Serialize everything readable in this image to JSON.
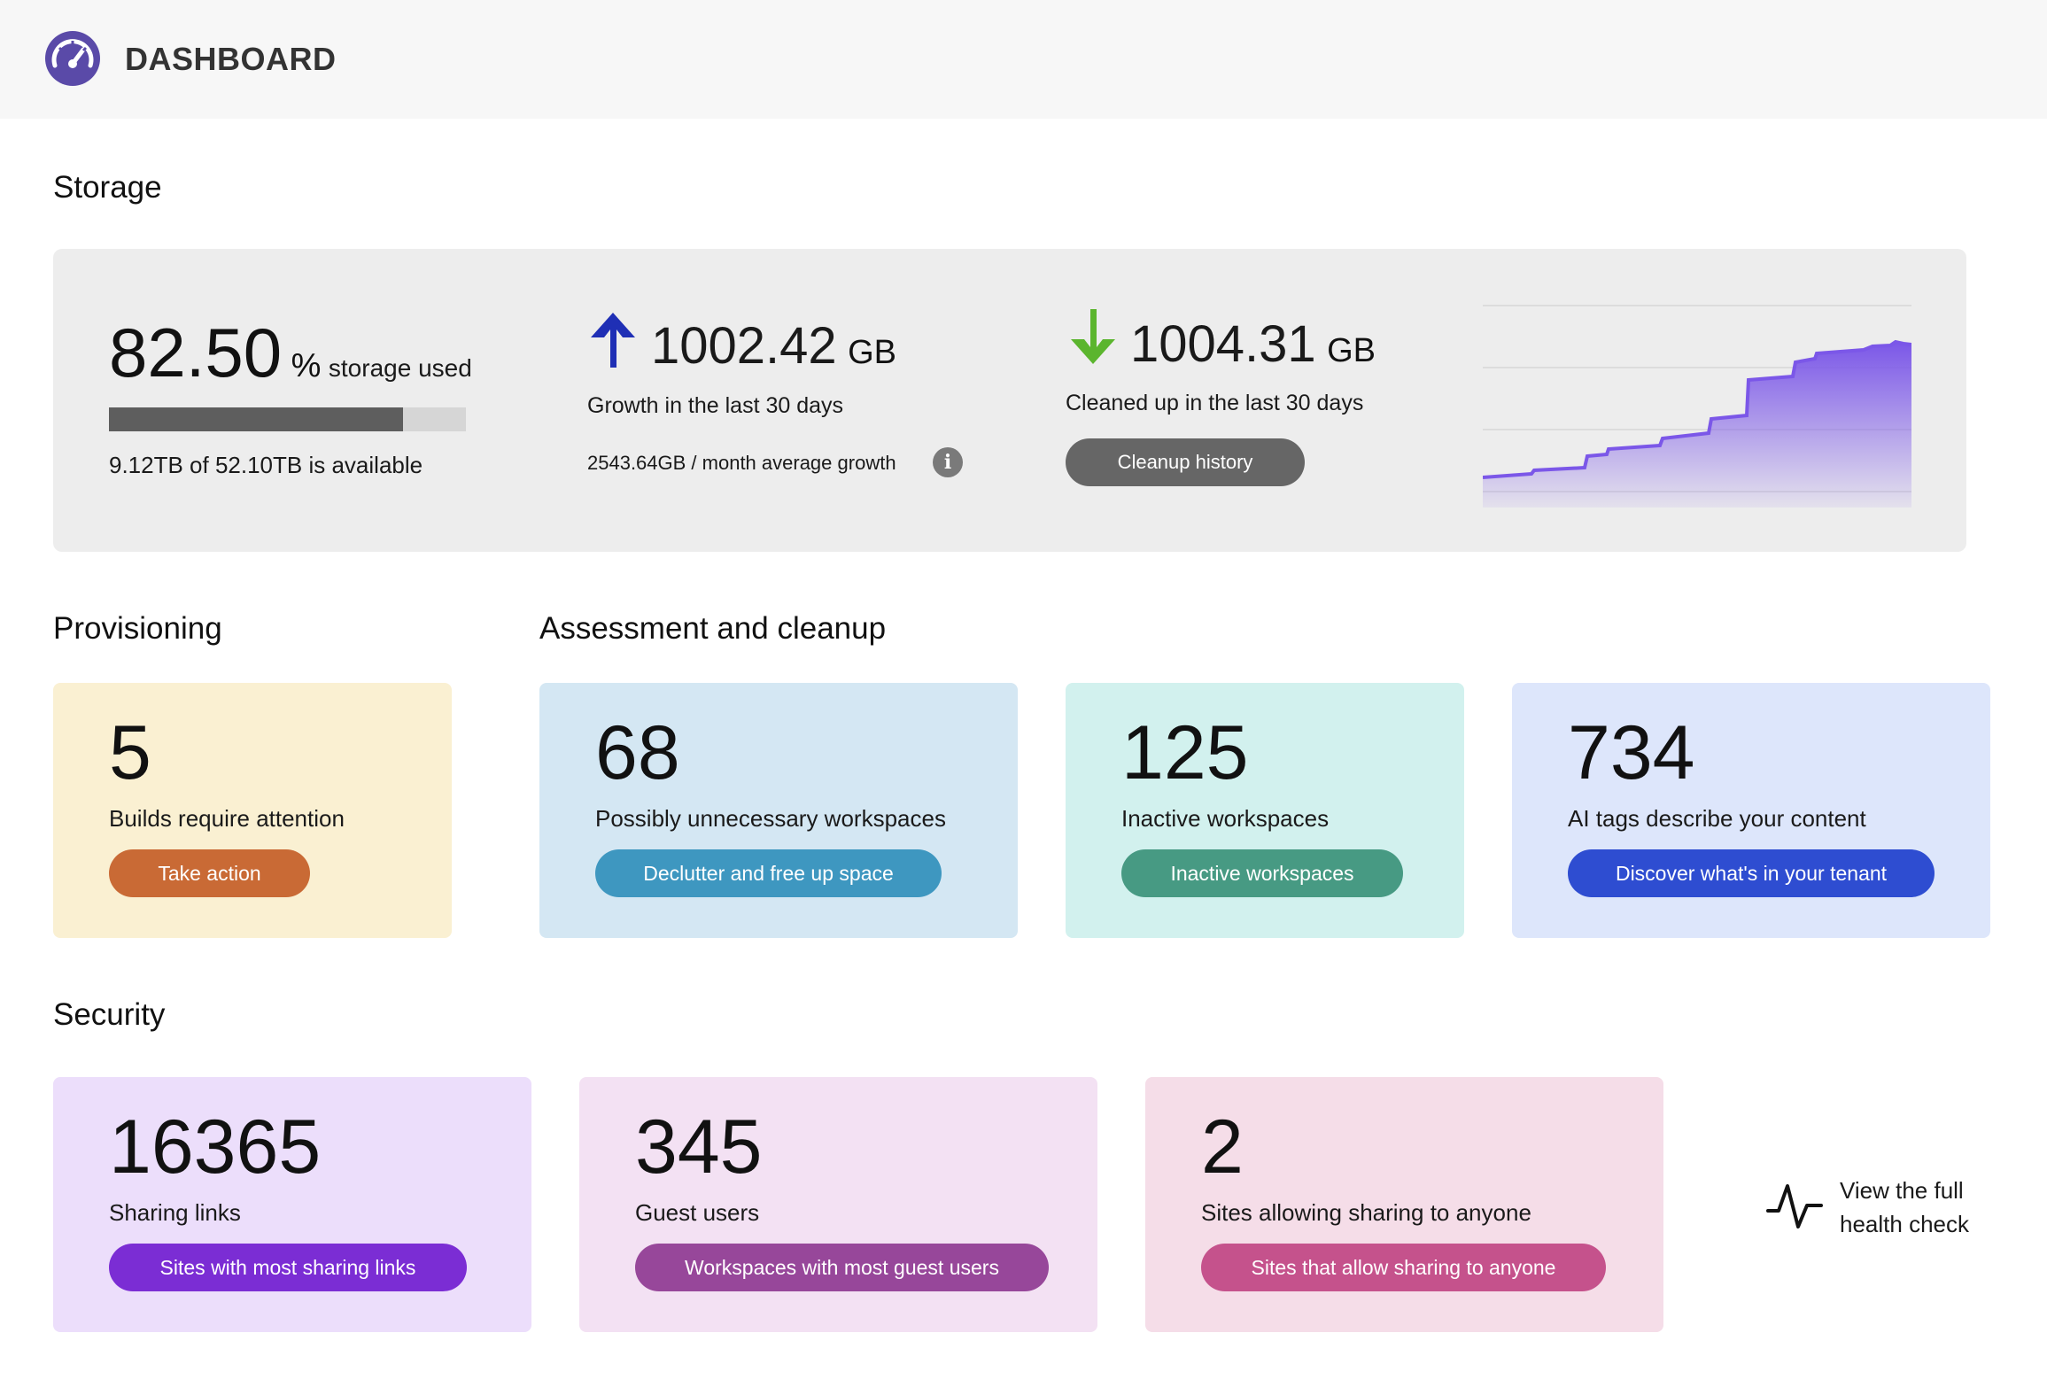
{
  "header": {
    "title": "DASHBOARD",
    "logo_icon": "speedometer-icon"
  },
  "sections": {
    "storage": "Storage",
    "provisioning": "Provisioning",
    "assessment": "Assessment and cleanup",
    "security": "Security"
  },
  "storage": {
    "used_value": "82.50",
    "used_unit": "%",
    "used_label": "storage used",
    "used_fraction": 0.825,
    "available_text": "9.12TB of 52.10TB is available",
    "growth_value": "1002.42",
    "growth_unit": "GB",
    "growth_label": "Growth in the last 30 days",
    "growth_avg": "2543.64GB / month average growth",
    "cleaned_value": "1004.31",
    "cleaned_unit": "GB",
    "cleaned_label": "Cleaned up in the last 30 days",
    "cleanup_button": "Cleanup history",
    "colors": {
      "growth_arrow": "#1f2fb5",
      "cleaned_arrow": "#5bb52e",
      "chart": "#7b57e8"
    }
  },
  "provisioning": {
    "value": "5",
    "label": "Builds require attention",
    "button": "Take action",
    "colors": {
      "bg": "#faf0d2",
      "button": "#c96a35"
    }
  },
  "assessment": [
    {
      "value": "68",
      "label": "Possibly unnecessary workspaces",
      "button": "Declutter and free up space",
      "colors": {
        "bg": "#d4e7f3",
        "button": "#3e97c0"
      }
    },
    {
      "value": "125",
      "label": "Inactive workspaces",
      "button": "Inactive workspaces",
      "colors": {
        "bg": "#d2f1ee",
        "button": "#479a83"
      }
    },
    {
      "value": "734",
      "label": "AI tags describe your content",
      "button": "Discover what's in your tenant",
      "colors": {
        "bg": "#dde6fb",
        "button": "#2e4dd1"
      }
    }
  ],
  "security": [
    {
      "value": "16365",
      "label": "Sharing links",
      "button": "Sites with most sharing links",
      "colors": {
        "bg": "#ecdefb",
        "button": "#7b2dd4"
      }
    },
    {
      "value": "345",
      "label": "Guest users",
      "button": "Workspaces with most guest users",
      "colors": {
        "bg": "#f3e1f3",
        "button": "#97479a"
      }
    },
    {
      "value": "2",
      "label": "Sites allowing sharing to anyone",
      "button": "Sites that allow sharing to anyone",
      "colors": {
        "bg": "#f5dde8",
        "button": "#c5528c"
      }
    }
  ],
  "health_check": {
    "line1": "View the full",
    "line2": "health check",
    "icon": "pulse-icon"
  }
}
